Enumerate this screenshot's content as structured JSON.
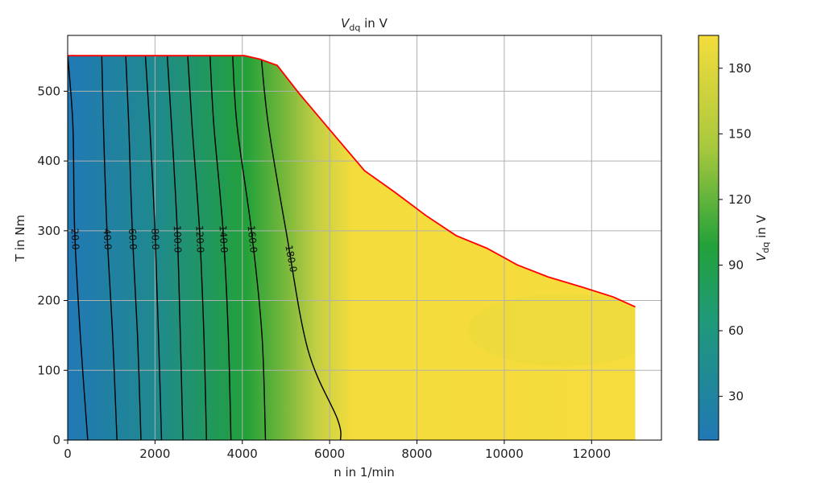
{
  "chart_data": {
    "type": "heatmap",
    "title": {
      "main": "V",
      "sub": "dq",
      "suffix": " in V"
    },
    "xlabel": "n in 1/min",
    "ylabel": "T in Nm",
    "xlim": [
      0,
      13600
    ],
    "ylim": [
      0,
      580
    ],
    "x_ticks": [
      0,
      2000,
      4000,
      6000,
      8000,
      10000,
      12000
    ],
    "y_ticks": [
      0,
      100,
      200,
      300,
      400,
      500
    ],
    "grid": true,
    "boundary": {
      "color": "#ff0000",
      "points": [
        [
          0,
          551
        ],
        [
          4050,
          551
        ],
        [
          4400,
          546
        ],
        [
          4800,
          537
        ],
        [
          5300,
          497
        ],
        [
          6000,
          445
        ],
        [
          6800,
          386
        ],
        [
          7500,
          355
        ],
        [
          8200,
          322
        ],
        [
          8900,
          293
        ],
        [
          9600,
          275
        ],
        [
          10300,
          251
        ],
        [
          11000,
          234
        ],
        [
          11800,
          219
        ],
        [
          12500,
          205
        ],
        [
          13000,
          191
        ],
        [
          13000,
          0
        ],
        [
          0,
          0
        ]
      ]
    },
    "contours": [
      {
        "level": 20.0,
        "label": "20.0",
        "points": [
          [
            0,
            551
          ],
          [
            120,
            450
          ],
          [
            160,
            300
          ],
          [
            290,
            150
          ],
          [
            460,
            0
          ]
        ]
      },
      {
        "level": 40.0,
        "label": "40.0",
        "points": [
          [
            780,
            551
          ],
          [
            820,
            450
          ],
          [
            900,
            300
          ],
          [
            1030,
            150
          ],
          [
            1130,
            0
          ]
        ]
      },
      {
        "level": 60.0,
        "label": "60.0",
        "points": [
          [
            1330,
            551
          ],
          [
            1400,
            450
          ],
          [
            1480,
            300
          ],
          [
            1600,
            150
          ],
          [
            1680,
            0
          ]
        ]
      },
      {
        "level": 80.0,
        "label": "80.0",
        "points": [
          [
            1780,
            551
          ],
          [
            1880,
            450
          ],
          [
            2000,
            300
          ],
          [
            2080,
            150
          ],
          [
            2150,
            0
          ]
        ]
      },
      {
        "level": 100.0,
        "label": "100.0",
        "points": [
          [
            2280,
            551
          ],
          [
            2380,
            450
          ],
          [
            2510,
            300
          ],
          [
            2580,
            150
          ],
          [
            2640,
            0
          ]
        ]
      },
      {
        "level": 120.0,
        "label": "120.0",
        "points": [
          [
            2750,
            551
          ],
          [
            2850,
            450
          ],
          [
            3020,
            300
          ],
          [
            3120,
            150
          ],
          [
            3180,
            0
          ]
        ]
      },
      {
        "level": 140.0,
        "label": "140.0",
        "points": [
          [
            3260,
            551
          ],
          [
            3350,
            450
          ],
          [
            3560,
            300
          ],
          [
            3680,
            150
          ],
          [
            3740,
            0
          ]
        ]
      },
      {
        "level": 160.0,
        "label": "160.0",
        "points": [
          [
            3780,
            551
          ],
          [
            3880,
            450
          ],
          [
            4210,
            300
          ],
          [
            4450,
            150
          ],
          [
            4530,
            0
          ]
        ]
      },
      {
        "level": 180.0,
        "label": "180.0",
        "points": [
          [
            4430,
            551
          ],
          [
            4600,
            450
          ],
          [
            5000,
            300
          ],
          [
            5500,
            130
          ],
          [
            6180,
            30
          ],
          [
            6250,
            0
          ]
        ]
      }
    ],
    "colorbar": {
      "label_main": "V",
      "label_sub": "dq",
      "label_suffix": " in V",
      "range": [
        10,
        195
      ],
      "ticks": [
        30,
        60,
        90,
        120,
        150,
        180
      ],
      "colors": [
        "#2178b5",
        "#22a13a",
        "#f4dc3c"
      ]
    }
  }
}
